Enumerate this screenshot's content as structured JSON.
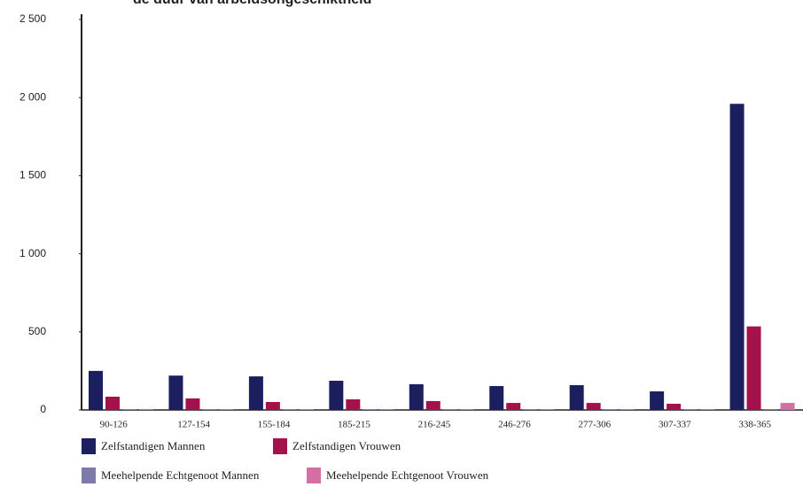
{
  "chart_data": {
    "type": "bar",
    "title": "de duur van arbeidsongeschiktheid",
    "categories": [
      "90-126",
      "127-154",
      "155-184",
      "185-215",
      "216-245",
      "246-276",
      "277-306",
      "307-337",
      "338-365"
    ],
    "series": [
      {
        "name": "Zelfstandigen Mannen",
        "color": "#1b1f5e",
        "values": [
          250,
          220,
          215,
          187,
          165,
          153,
          159,
          119,
          1960
        ]
      },
      {
        "name": "Zelfstandigen Vrouwen",
        "color": "#a3124b",
        "values": [
          85,
          74,
          51,
          68,
          57,
          45,
          45,
          40,
          535
        ]
      },
      {
        "name": "Meehelpende Echtgenoot Mannen",
        "color": "#7b7aa8",
        "values": [
          4,
          3,
          3,
          3,
          3,
          3,
          3,
          3,
          5
        ]
      },
      {
        "name": "Meehelpende Echtgenoot Vrouwen",
        "color": "#d46fa3",
        "values": [
          6,
          5,
          5,
          5,
          5,
          5,
          5,
          5,
          45
        ]
      }
    ],
    "ylim": [
      0,
      2500
    ],
    "yticks": [
      0,
      500,
      {
        "value": 1000,
        "label": "1 000"
      },
      {
        "value": 1500,
        "label": "1 500"
      },
      {
        "value": 2000,
        "label": "2 000"
      },
      {
        "value": 2500,
        "label": "2 500"
      }
    ]
  }
}
